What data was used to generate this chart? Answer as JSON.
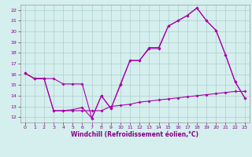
{
  "x": [
    0,
    1,
    2,
    3,
    4,
    5,
    6,
    7,
    8,
    9,
    10,
    11,
    12,
    13,
    14,
    15,
    16,
    17,
    18,
    19,
    20,
    21,
    22,
    23
  ],
  "line1": [
    16.1,
    15.6,
    15.6,
    15.6,
    15.1,
    15.1,
    15.1,
    11.9,
    14.0,
    12.8,
    15.1,
    17.3,
    17.3,
    18.5,
    18.5,
    20.5,
    21.0,
    21.5,
    22.2,
    21.0,
    20.1,
    17.8,
    15.3,
    13.8
  ],
  "line2": [
    16.1,
    15.6,
    15.6,
    12.6,
    12.6,
    12.7,
    12.9,
    11.9,
    14.0,
    12.8,
    15.0,
    17.3,
    17.3,
    18.4,
    18.4,
    20.5,
    21.0,
    21.5,
    22.2,
    21.0,
    20.1,
    17.8,
    15.3,
    13.8
  ],
  "line3": [
    16.1,
    15.6,
    15.6,
    12.6,
    12.6,
    12.6,
    12.6,
    12.6,
    12.6,
    13.0,
    13.1,
    13.2,
    13.4,
    13.5,
    13.6,
    13.7,
    13.8,
    13.9,
    14.0,
    14.1,
    14.2,
    14.3,
    14.4,
    14.4
  ],
  "background_color": "#d4efee",
  "grid_color": "#b0cccc",
  "line_color": "#aa00aa",
  "xlabel": "Windchill (Refroidissement éolien,°C)",
  "ylim": [
    11.5,
    22.5
  ],
  "xlim": [
    -0.5,
    23.5
  ],
  "yticks": [
    12,
    13,
    14,
    15,
    16,
    17,
    18,
    19,
    20,
    21,
    22
  ],
  "xticks": [
    0,
    1,
    2,
    3,
    4,
    5,
    6,
    7,
    8,
    9,
    10,
    11,
    12,
    13,
    14,
    15,
    16,
    17,
    18,
    19,
    20,
    21,
    22,
    23
  ]
}
